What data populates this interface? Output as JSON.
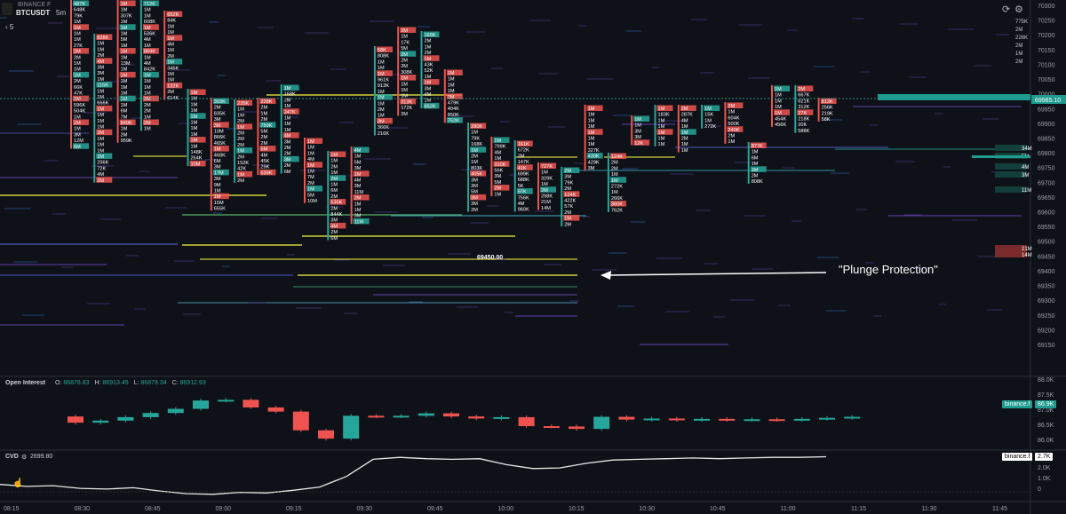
{
  "header": {
    "exchange": "BINANCE F",
    "symbol": "BTCUSDT",
    "timeframe": "5m",
    "control_value": "5"
  },
  "price_axis": {
    "labels": [
      "70300",
      "70250",
      "70200",
      "70150",
      "70100",
      "70050",
      "70000",
      "69950",
      "69900",
      "69850",
      "69800",
      "69750",
      "69700",
      "69650",
      "69600",
      "69550",
      "69500",
      "69450",
      "69400",
      "69350",
      "69300",
      "69250",
      "69200",
      "69150"
    ],
    "extra_labels": [
      "775K",
      "2M",
      "226K",
      "2M",
      "1M",
      "2M"
    ],
    "current_price": "69985.10",
    "current_price_color": "#1f9c8f",
    "right_volume_tags": [
      "34M",
      "5M",
      "4M",
      "3M",
      "11M",
      "21M",
      "14M"
    ]
  },
  "time_axis": {
    "labels": [
      "08:15",
      "08:30",
      "08:45",
      "09:00",
      "09:15",
      "09:30",
      "09:45",
      "10:00",
      "10:15",
      "10:30",
      "10:45",
      "11:00",
      "11:15",
      "11:30",
      "11:45"
    ]
  },
  "footprint": {
    "price_marker": "69450.00",
    "bull_color": "#26a69a",
    "bear_color": "#ef5350",
    "liquidity_line_color": "#e6e640",
    "columns": [
      {
        "label": "08:25",
        "vals": [
          "487K",
          "648K",
          "79K",
          "1M",
          "1M",
          "1M",
          "1M",
          "27K",
          "2M",
          "2M",
          "1M",
          "1M",
          "1M",
          "2M",
          "66K",
          "47K",
          "1M",
          "596K",
          "504K",
          "1M",
          "1M",
          "1M",
          "3M",
          "12M",
          "6M"
        ]
      },
      {
        "label": "08:30",
        "vals": [
          "828K",
          "1M",
          "1M",
          "2M",
          "4M",
          "3M",
          "3M",
          "1M",
          "115K",
          "1M",
          "1M",
          "666K",
          "1M",
          "1M",
          "1M",
          "1M",
          "3M",
          "1M",
          "1M",
          "1M",
          "2M",
          "296K",
          "72K",
          "4M",
          "2M"
        ]
      },
      {
        "label": "08:35",
        "vals": [
          "1M",
          "1M",
          "307K",
          "1M",
          "1M",
          "1M",
          "5M",
          "1M",
          "1M",
          "1M",
          "13M",
          "1M",
          "1M",
          "1M",
          "1M",
          "1M",
          "1M",
          "1M",
          "6M",
          "7M",
          "849K",
          "1M",
          "2M",
          "959K"
        ]
      },
      {
        "label": "08:40",
        "vals": [
          "712K",
          "1M",
          "1M",
          "608K",
          "1M",
          "526K",
          "4M",
          "1M",
          "869K",
          "1M",
          "4M",
          "842K",
          "1M",
          "1M",
          "1M",
          "1M",
          "3M",
          "2M",
          "2M",
          "1M",
          "2M",
          "1M"
        ]
      },
      {
        "label": "08:45",
        "vals": [
          "652K",
          "84K",
          "1M",
          "1M",
          "1M",
          "4M",
          "1M",
          "2M",
          "1M",
          "346K",
          "1M",
          "1M",
          "132K",
          "2M",
          "614K"
        ]
      },
      {
        "label": "08:50",
        "vals": [
          "1M",
          "1M",
          "1M",
          "1M",
          "1M",
          "1M",
          "1M",
          "1M",
          "1M",
          "1M",
          "148K",
          "264K",
          "10M"
        ]
      },
      {
        "label": "08:55",
        "vals": [
          "303K",
          "2M",
          "835K",
          "3M",
          "3M",
          "10M",
          "866K",
          "465K",
          "1M",
          "468K",
          "6M",
          "3M",
          "17M",
          "3M",
          "9M",
          "1M",
          "1M",
          "15M",
          "655K"
        ]
      },
      {
        "label": "09:00",
        "vals": [
          "235K",
          "1M",
          "1M",
          "2M",
          "1M",
          "2M",
          "2M",
          "2M",
          "1M",
          "2M",
          "152K",
          "42K",
          "1M",
          "2M"
        ]
      },
      {
        "label": "09:05",
        "vals": [
          "228K",
          "2M",
          "1M",
          "2M",
          "759K",
          "5M",
          "2M",
          "2M",
          "6M",
          "4M",
          "45K",
          "29K",
          "639K"
        ]
      },
      {
        "label": "09:10",
        "vals": [
          "1M",
          "168K",
          "2M",
          "1M",
          "247K",
          "1M",
          "1M",
          "1M",
          "4M",
          "3M",
          "2M",
          "2M",
          "3M",
          "2M",
          "6M"
        ]
      },
      {
        "label": "09:15",
        "vals": [
          "1M",
          "1M",
          "1M",
          "4M",
          "1M",
          "1M",
          "7M",
          "2M",
          "1M",
          "5M",
          "10M"
        ]
      },
      {
        "label": "09:20",
        "vals": [
          "1M",
          "1M",
          "2M",
          "1M",
          "2M",
          "1M",
          "6M",
          "2M",
          "535K",
          "2M",
          "844K",
          "3M",
          "4M",
          "2M",
          "6M"
        ]
      },
      {
        "label": "09:25",
        "vals": [
          "4M",
          "1M",
          "5M",
          "3M",
          "1M",
          "4M",
          "3M",
          "11M",
          "2M",
          "1M",
          "1M",
          "3M",
          "11M"
        ]
      },
      {
        "label": "09:30",
        "vals": [
          "58K",
          "808K",
          "1M",
          "1M",
          "1M",
          "961K",
          "913K",
          "1M",
          "1M",
          "1M",
          "2M",
          "1M",
          "3M",
          "366K",
          "216K"
        ]
      },
      {
        "label": "09:35",
        "vals": [
          "2M",
          "1M",
          "17K",
          "5M",
          "2M",
          "2M",
          "2M",
          "308K",
          "1M",
          "1M",
          "1M",
          "1M",
          "313K",
          "172K",
          "2M"
        ]
      },
      {
        "label": "09:40",
        "vals": [
          "166K",
          "2M",
          "1M",
          "2M",
          "1M",
          "43K",
          "52K",
          "1M",
          "1M",
          "3M",
          "4M",
          "1M",
          "852K"
        ]
      },
      {
        "label": "09:45",
        "vals": [
          "1M",
          "1M",
          "1M",
          "1M",
          "2M",
          "479K",
          "404K",
          "850K",
          "752K"
        ]
      },
      {
        "label": "09:50",
        "vals": [
          "280K",
          "1M",
          "79K",
          "168K",
          "1M",
          "2M",
          "1M",
          "803K",
          "405K",
          "3M",
          "3M",
          "5M",
          "3M",
          "3M",
          "2M"
        ]
      },
      {
        "label": "09:55",
        "vals": [
          "1M",
          "799K",
          "4M",
          "1M",
          "310K",
          "56K",
          "3M",
          "5M",
          "2M",
          "1M"
        ]
      },
      {
        "label": "10:00",
        "vals": [
          "161K",
          "672K",
          "2M",
          "147K",
          "41K",
          "699K",
          "688K",
          "5K",
          "97K",
          "756K",
          "4M",
          "960K"
        ]
      },
      {
        "label": "10:05",
        "vals": [
          "727K",
          "1M",
          "329K",
          "1M",
          "2M",
          "298K",
          "21M",
          "14M"
        ]
      },
      {
        "label": "10:10",
        "vals": [
          "2M",
          "3M",
          "79K",
          "2M",
          "124K",
          "422K",
          "57K",
          "2M",
          "1M",
          "2M"
        ]
      },
      {
        "label": "10:15",
        "vals": [
          "1M",
          "1M",
          "1M",
          "1M",
          "1M",
          "1M",
          "1M",
          "327K",
          "430K",
          "429K",
          "3M"
        ]
      },
      {
        "label": "10:20",
        "vals": [
          "124K",
          "2M",
          "2M",
          "1M",
          "1M",
          "272K",
          "1M",
          "266K",
          "360K",
          "762K"
        ]
      },
      {
        "label": "10:25",
        "vals": [
          "1M",
          "1M",
          "3M",
          "3M",
          "12K"
        ]
      },
      {
        "label": "10:30",
        "vals": [
          "1M",
          "183K",
          "1M",
          "1M",
          "1M",
          "1M",
          "1M"
        ]
      },
      {
        "label": "10:35",
        "vals": [
          "2M",
          "287K",
          "4M",
          "1M",
          "1M",
          "2M",
          "1M",
          "1M"
        ]
      },
      {
        "label": "10:40",
        "vals": [
          "1M",
          "15K",
          "1M",
          "272K"
        ]
      },
      {
        "label": "10:45",
        "vals": [
          "2M",
          "1M",
          "604K",
          "500K",
          "240K",
          "2M",
          "1M"
        ]
      },
      {
        "label": "10:50",
        "vals": [
          "877K",
          "1M",
          "6M",
          "1M",
          "1M",
          "2M",
          "808K"
        ]
      },
      {
        "label": "10:55",
        "vals": [
          "1M",
          "1M",
          "1M",
          "1M",
          "1M",
          "454K",
          "456K"
        ]
      },
      {
        "label": "11:00",
        "vals": [
          "2M",
          "667K",
          "621K",
          "312K",
          "27K",
          "218K",
          "20K",
          "588K"
        ]
      },
      {
        "label": "11:05",
        "vals": [
          "812K",
          "256K",
          "219K",
          "58K"
        ]
      }
    ]
  },
  "annotation": {
    "text": "\"Plunge Protection\""
  },
  "open_interest": {
    "title": "Open Interest",
    "o_label": "O:",
    "o": "86878.83",
    "h_label": "H:",
    "h": "86913.45",
    "l_label": "L:",
    "l": "86878.34",
    "c_label": "C:",
    "c": "86912.93",
    "axis_labels": [
      "88.0K",
      "87.5K",
      "87.0K",
      "86.5K",
      "86.0K"
    ],
    "tag": "binance.f",
    "tag_value": "86.9K",
    "candles": [
      {
        "o": 86.92,
        "c": 86.74
      },
      {
        "o": 86.74,
        "c": 86.8
      },
      {
        "o": 86.8,
        "c": 86.9
      },
      {
        "o": 86.9,
        "c": 87.02
      },
      {
        "o": 87.02,
        "c": 87.14
      },
      {
        "o": 87.14,
        "c": 87.38
      },
      {
        "o": 87.38,
        "c": 87.4
      },
      {
        "o": 87.4,
        "c": 87.18
      },
      {
        "o": 87.18,
        "c": 87.06
      },
      {
        "o": 87.06,
        "c": 86.52
      },
      {
        "o": 86.52,
        "c": 86.28
      },
      {
        "o": 86.28,
        "c": 86.94
      },
      {
        "o": 86.94,
        "c": 86.92
      },
      {
        "o": 86.92,
        "c": 86.94
      },
      {
        "o": 86.94,
        "c": 87.01
      },
      {
        "o": 87.01,
        "c": 86.92
      },
      {
        "o": 86.92,
        "c": 86.86
      },
      {
        "o": 86.86,
        "c": 86.9
      },
      {
        "o": 86.9,
        "c": 86.64
      },
      {
        "o": 86.64,
        "c": 86.63
      },
      {
        "o": 86.63,
        "c": 86.56
      },
      {
        "o": 86.56,
        "c": 86.91
      },
      {
        "o": 86.91,
        "c": 86.83
      },
      {
        "o": 86.83,
        "c": 86.86
      },
      {
        "o": 86.86,
        "c": 86.82
      },
      {
        "o": 86.82,
        "c": 86.85
      },
      {
        "o": 86.85,
        "c": 86.82
      },
      {
        "o": 86.82,
        "c": 86.84
      },
      {
        "o": 86.84,
        "c": 86.82
      },
      {
        "o": 86.82,
        "c": 86.85
      },
      {
        "o": 86.85,
        "c": 86.88
      },
      {
        "o": 86.88,
        "c": 86.91
      }
    ]
  },
  "cvd": {
    "title": "CVD",
    "value": "2699.80",
    "axis_labels": [
      "2.0K",
      "1.0K",
      "0"
    ],
    "tag": "binance.f",
    "tag_value": "2.7K",
    "series": [
      0.6,
      0.45,
      0.5,
      0.3,
      0.25,
      0.35,
      0.1,
      -0.1,
      -0.15,
      0.0,
      -0.05,
      0.15,
      0.4,
      1.2,
      2.5,
      2.65,
      2.55,
      2.5,
      2.55,
      2.1,
      1.8,
      1.85,
      2.2,
      2.45,
      2.5,
      2.55,
      2.6,
      2.55,
      2.6,
      2.65,
      2.65,
      2.7
    ]
  }
}
